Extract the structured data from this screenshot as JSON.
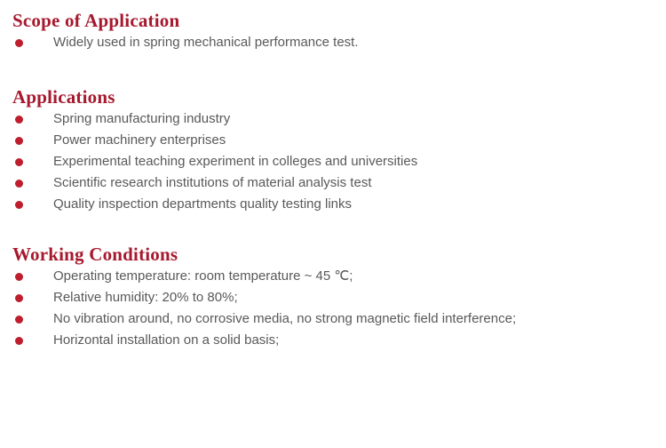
{
  "page": {
    "background": "#ffffff"
  },
  "colors": {
    "heading": "#A6192E",
    "bullet": "#BE1E2D",
    "body_text": "#595959"
  },
  "sections": [
    {
      "title": "Scope of Application",
      "items": [
        "Widely used in spring mechanical performance test."
      ]
    },
    {
      "title": "Applications",
      "items": [
        "Spring manufacturing industry",
        "Power machinery enterprises",
        "Experimental teaching experiment in colleges and universities",
        "Scientific research institutions of material analysis test",
        "Quality inspection departments quality testing links"
      ]
    },
    {
      "title": "Working Conditions",
      "items": [
        "Operating temperature: room temperature ~ 45 ℃;",
        "Relative humidity: 20% to 80%;",
        "No vibration around, no corrosive media, no strong magnetic field interference;",
        "Horizontal installation on a solid basis;"
      ]
    }
  ]
}
